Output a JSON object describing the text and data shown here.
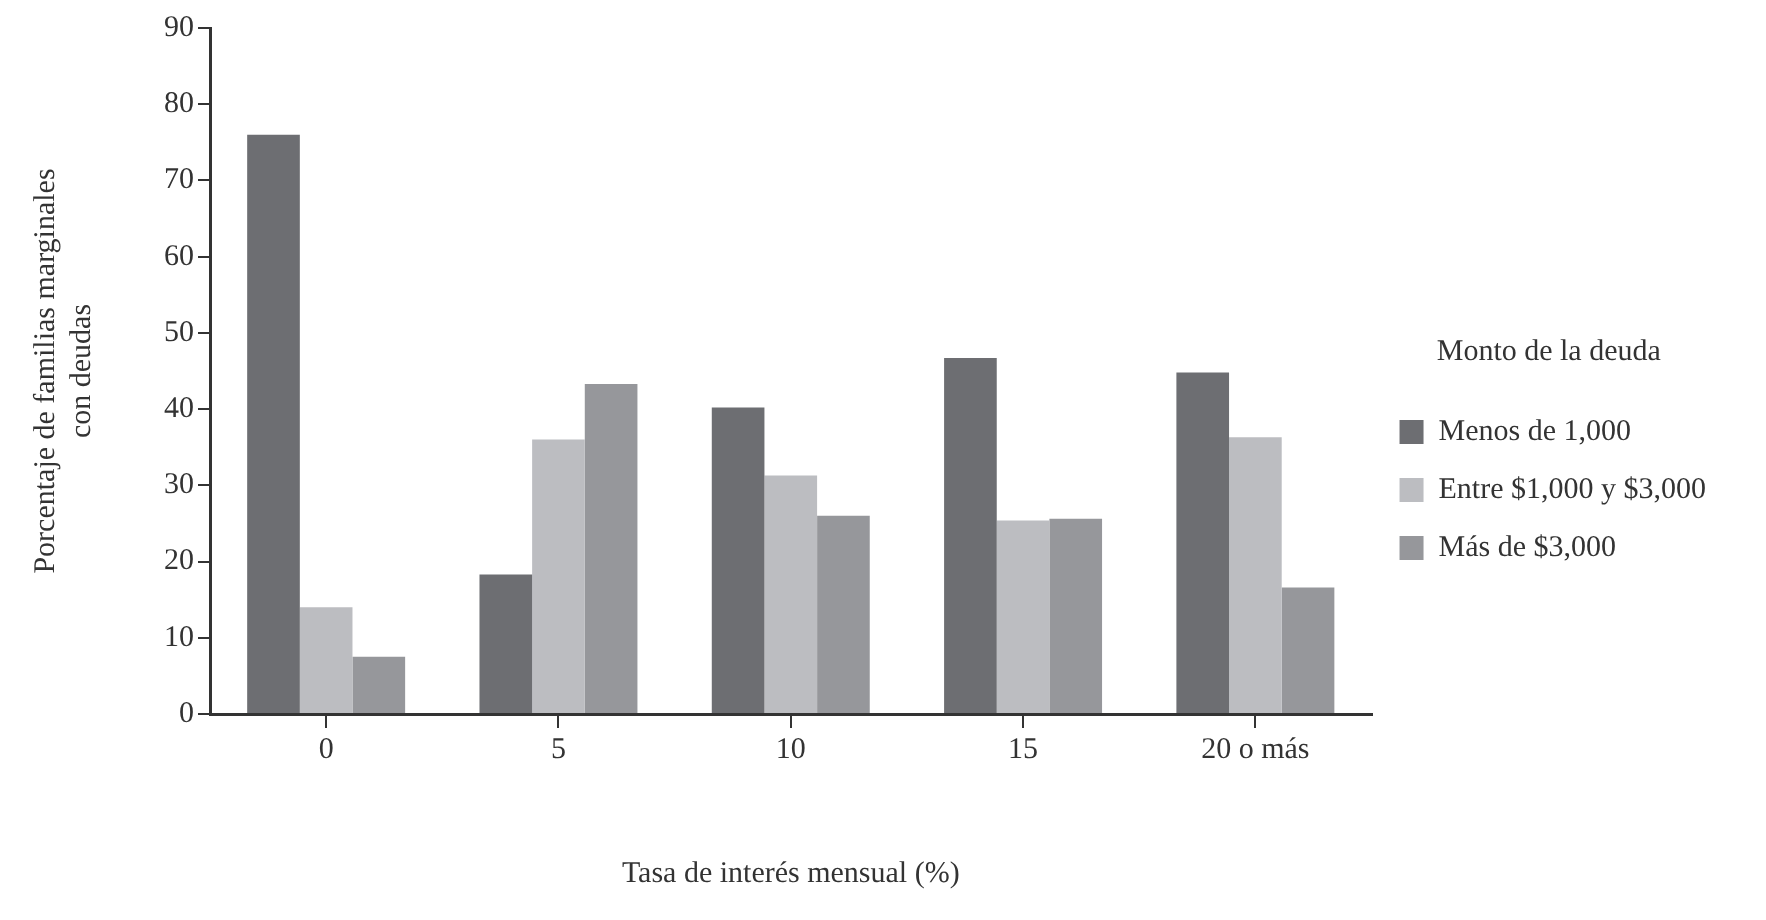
{
  "chart_data": {
    "type": "bar",
    "xlabel": "Tasa de interés mensual (%)",
    "ylabel": "Porcentaje de familias marginales\ncon deudas",
    "legend_title": "Monto de la deuda",
    "categories": [
      "0",
      "5",
      "10",
      "15",
      "20 o más"
    ],
    "series": [
      {
        "name": "Menos de 1,000",
        "color": "#6d6e72",
        "values": [
          76,
          18.3,
          40.2,
          46.7,
          44.8
        ]
      },
      {
        "name": "Entre $1,000 y $3,000",
        "color": "#bcbdc1",
        "values": [
          14,
          36,
          31.3,
          25.4,
          36.3
        ]
      },
      {
        "name": "Más de $3,000",
        "color": "#96979b",
        "values": [
          7.5,
          43.3,
          26,
          25.6,
          16.6
        ]
      }
    ],
    "ylim": [
      0,
      90
    ],
    "yticks": [
      0,
      10,
      20,
      30,
      40,
      50,
      60,
      70,
      80,
      90
    ],
    "grid": false,
    "legend": "right"
  }
}
